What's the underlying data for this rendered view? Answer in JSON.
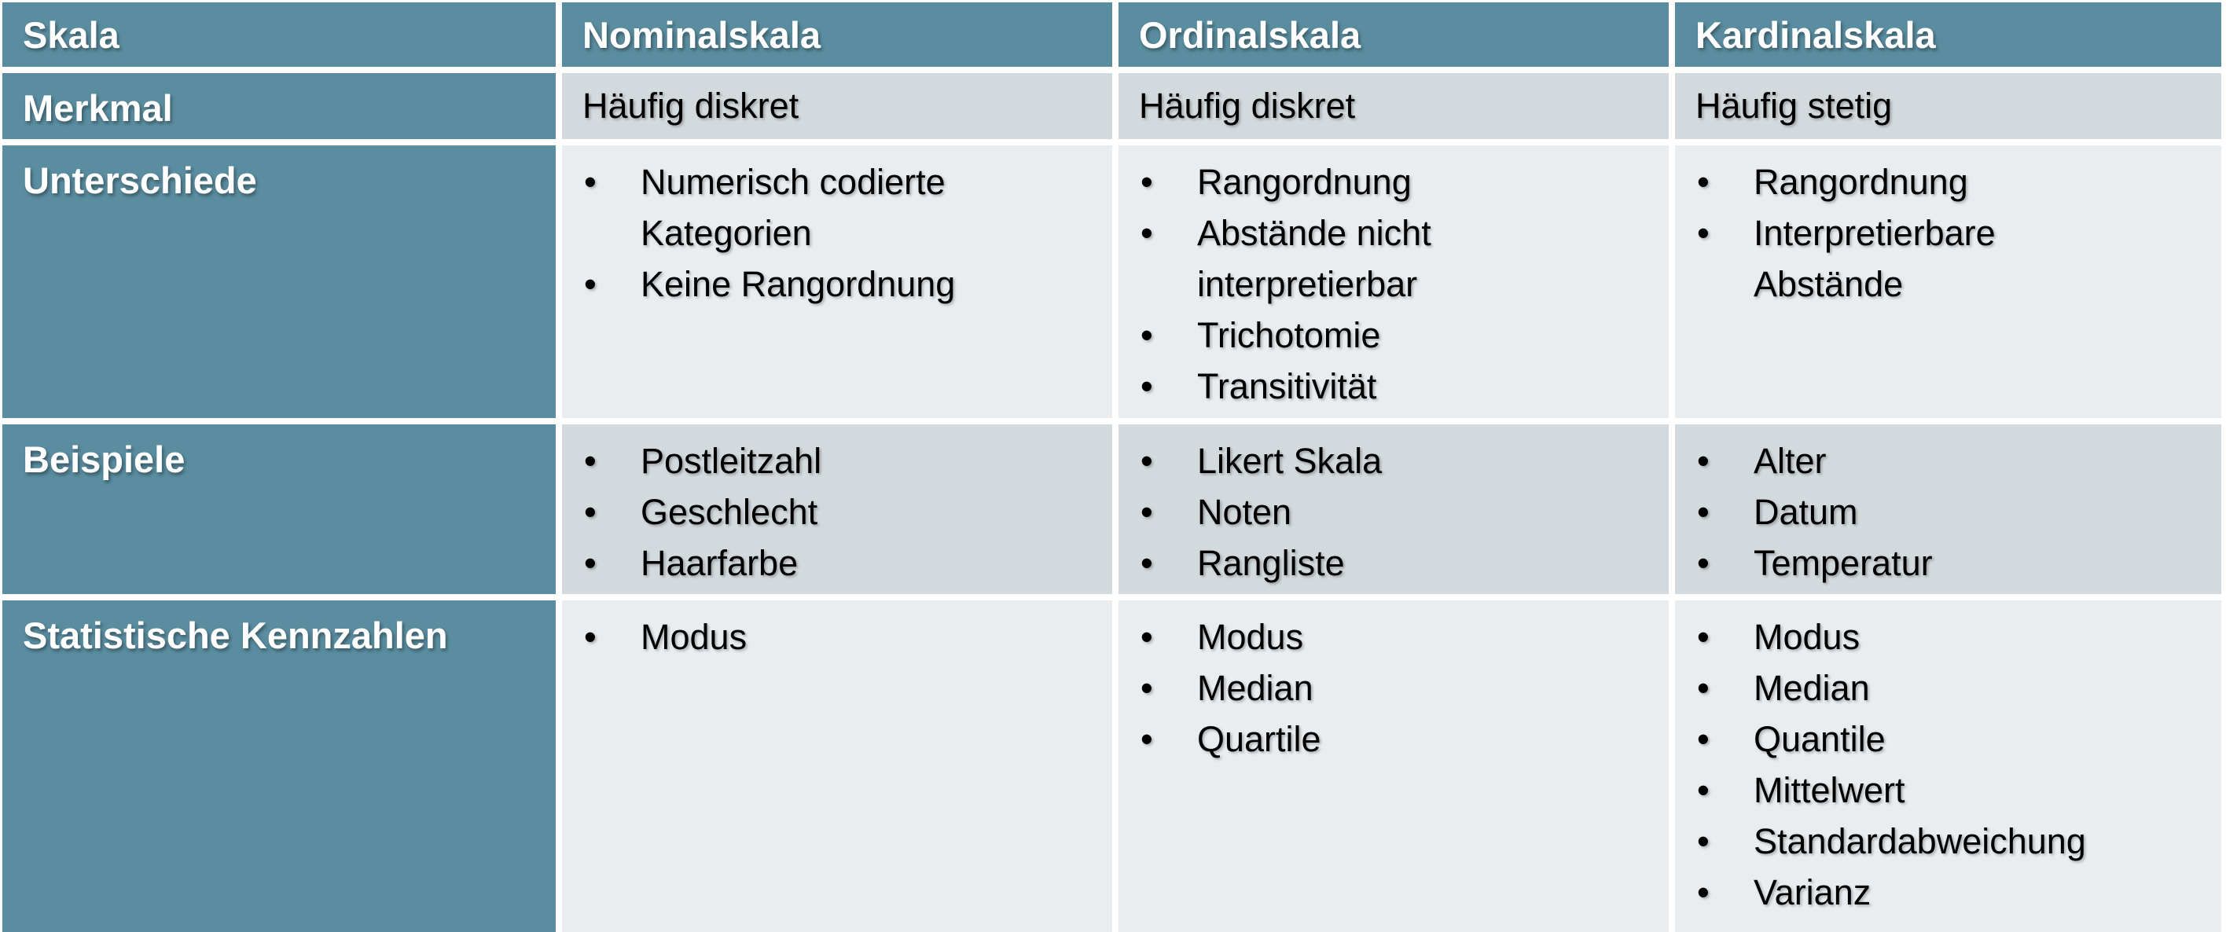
{
  "colors": {
    "teal_header": "#5A8DA0",
    "row_band_dark": "#D3DADE",
    "row_band_light": "#E9EDF0",
    "divider": "#FFFFFF",
    "header_text": "#FFFFFF",
    "body_text": "#000000"
  },
  "header": {
    "skala": "Skala",
    "nominal": "Nominalskala",
    "ordinal": "Ordinalskala",
    "kardinal": "Kardinalskala"
  },
  "merkmal": {
    "label": "Merkmal",
    "nominal": "Häufig diskret",
    "ordinal": "Häufig diskret",
    "kardinal": "Häufig stetig"
  },
  "unterschiede": {
    "label": "Unterschiede",
    "nominal": [
      "Numerisch codierte Kategorien",
      "Keine Rangordnung"
    ],
    "ordinal": [
      "Rangordnung",
      "Abstände nicht interpretierbar",
      "Trichotomie",
      "Transitivität"
    ],
    "kardinal": [
      "Rangordnung",
      "Interpretierbare Abstände"
    ]
  },
  "beispiele": {
    "label": "Beispiele",
    "nominal": [
      "Postleitzahl",
      "Geschlecht",
      "Haarfarbe"
    ],
    "ordinal": [
      "Likert Skala",
      "Noten",
      "Rangliste"
    ],
    "kardinal": [
      "Alter",
      "Datum",
      "Temperatur"
    ]
  },
  "kennzahlen": {
    "label": "Statistische Kennzahlen",
    "nominal": [
      "Modus"
    ],
    "ordinal": [
      "Modus",
      "Median",
      "Quartile"
    ],
    "kardinal": [
      "Modus",
      "Median",
      "Quantile",
      "Mittelwert",
      "Standardabweichung",
      "Varianz"
    ]
  }
}
